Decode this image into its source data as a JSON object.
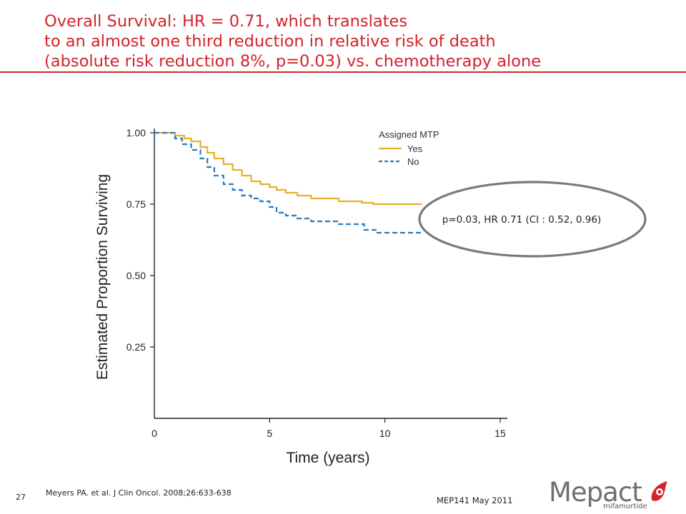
{
  "slide": {
    "title_lines": [
      "Overall Survival: HR = 0.71, which translates",
      "to an almost one third reduction in relative risk of death",
      "(absolute risk reduction 8%, p=0.03) vs. chemotherapy alone"
    ],
    "page_number": "27",
    "reference": "Meyers PA. et al. J Clin Oncol. 2008;26:633-638",
    "doc_code": "MEP141 May 2011",
    "logo": {
      "word": "Mepact",
      "registered": "®",
      "subtitle": "mifamurtide"
    },
    "accent_color": "#d2232a"
  },
  "chart_data": {
    "type": "line",
    "xlabel": "Time (years)",
    "ylabel": "Estimated Proportion Surviving",
    "xlim": [
      0,
      15
    ],
    "ylim": [
      0,
      1.0
    ],
    "x_ticks": [
      "0",
      "5",
      "10",
      "15"
    ],
    "y_ticks": [
      "0.25",
      "0.50",
      "0.75",
      "1.00"
    ],
    "grid": false,
    "legend": {
      "title": "Assigned MTP",
      "placement": "top-right"
    },
    "series": [
      {
        "name": "Yes",
        "color": "#e3b22b",
        "style": "solid",
        "step": true,
        "x": [
          0.6,
          0.9,
          1.3,
          1.6,
          2.0,
          2.3,
          2.6,
          3.0,
          3.4,
          3.8,
          4.2,
          4.6,
          5.0,
          5.3,
          5.7,
          6.2,
          6.8,
          7.5,
          8.0,
          8.6,
          9.0,
          9.5,
          10.0,
          11.0,
          11.6
        ],
        "y": [
          1.0,
          0.99,
          0.98,
          0.97,
          0.95,
          0.93,
          0.91,
          0.89,
          0.87,
          0.85,
          0.83,
          0.82,
          0.81,
          0.8,
          0.79,
          0.78,
          0.77,
          0.77,
          0.76,
          0.76,
          0.755,
          0.75,
          0.75,
          0.75,
          0.75
        ]
      },
      {
        "name": "No",
        "color": "#2a7bbd",
        "style": "dashed",
        "step": true,
        "x": [
          0.6,
          0.9,
          1.2,
          1.6,
          2.0,
          2.3,
          2.6,
          3.0,
          3.4,
          3.8,
          4.2,
          4.6,
          5.0,
          5.3,
          5.7,
          6.2,
          6.8,
          7.3,
          8.0,
          8.6,
          9.1,
          9.6,
          10.5,
          11.6
        ],
        "y": [
          1.0,
          0.98,
          0.96,
          0.94,
          0.91,
          0.88,
          0.85,
          0.82,
          0.8,
          0.78,
          0.77,
          0.76,
          0.74,
          0.72,
          0.71,
          0.7,
          0.69,
          0.69,
          0.68,
          0.68,
          0.66,
          0.65,
          0.65,
          0.65
        ]
      }
    ],
    "annotation": {
      "text": "p=0.03, HR 0.71 (CI : 0.52, 0.96)",
      "shape": "ellipse",
      "border_color": "#7a7a7a"
    }
  }
}
